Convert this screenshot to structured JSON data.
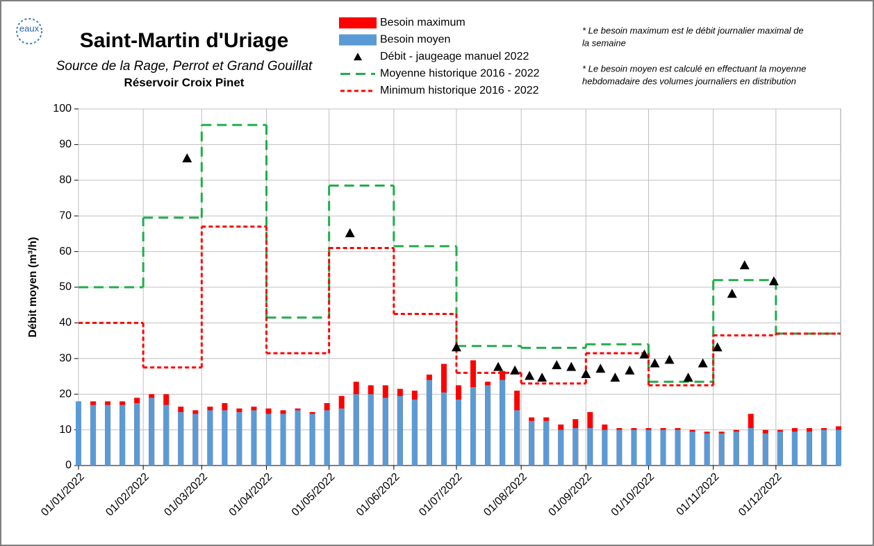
{
  "chart_data": {
    "type": "bar",
    "title": "Saint-Martin d'Uriage",
    "subtitle": "Source de la Rage, Perrot et Grand Gouillat",
    "subtitle2": "Réservoir Croix Pinet",
    "logo": "eaux",
    "ylabel": "Débit moyen (m³/h)",
    "notes": [
      "* Le besoin maximum est le débit journalier maximal de",
      "la semaine",
      "* Le besoin moyen est calculé en effectuant la moyenne",
      "hebdomadaire des volumes journaliers en distribution"
    ],
    "xlim": [
      "2022-01-01",
      "2023-01-01"
    ],
    "xticks": [
      {
        "value": "2022-01-01",
        "label": "01/01/2022"
      },
      {
        "value": "2022-02-01",
        "label": "01/02/2022"
      },
      {
        "value": "2022-03-01",
        "label": "01/03/2022"
      },
      {
        "value": "2022-04-01",
        "label": "01/04/2022"
      },
      {
        "value": "2022-05-01",
        "label": "01/05/2022"
      },
      {
        "value": "2022-06-01",
        "label": "01/06/2022"
      },
      {
        "value": "2022-07-01",
        "label": "01/07/2022"
      },
      {
        "value": "2022-08-01",
        "label": "01/08/2022"
      },
      {
        "value": "2022-09-01",
        "label": "01/09/2022"
      },
      {
        "value": "2022-10-01",
        "label": "01/10/2022"
      },
      {
        "value": "2022-11-01",
        "label": "01/11/2022"
      },
      {
        "value": "2022-12-01",
        "label": "01/12/2022"
      }
    ],
    "ylim": [
      0,
      100
    ],
    "yticks": [
      0,
      10,
      20,
      30,
      40,
      50,
      60,
      70,
      80,
      90,
      100
    ],
    "grid": true,
    "x": [
      "2022-01-01",
      "2022-01-08",
      "2022-01-15",
      "2022-01-22",
      "2022-01-29",
      "2022-02-05",
      "2022-02-12",
      "2022-02-19",
      "2022-02-26",
      "2022-03-05",
      "2022-03-12",
      "2022-03-19",
      "2022-03-26",
      "2022-04-02",
      "2022-04-09",
      "2022-04-16",
      "2022-04-23",
      "2022-04-30",
      "2022-05-07",
      "2022-05-14",
      "2022-05-21",
      "2022-05-28",
      "2022-06-04",
      "2022-06-11",
      "2022-06-18",
      "2022-06-25",
      "2022-07-02",
      "2022-07-09",
      "2022-07-16",
      "2022-07-23",
      "2022-07-30",
      "2022-08-06",
      "2022-08-13",
      "2022-08-20",
      "2022-08-27",
      "2022-09-03",
      "2022-09-10",
      "2022-09-17",
      "2022-09-24",
      "2022-10-01",
      "2022-10-08",
      "2022-10-15",
      "2022-10-22",
      "2022-10-29",
      "2022-11-05",
      "2022-11-12",
      "2022-11-19",
      "2022-11-26",
      "2022-12-03",
      "2022-12-10",
      "2022-12-17",
      "2022-12-24",
      "2022-12-31"
    ],
    "series": [
      {
        "name": "Besoin maximum",
        "color": "#ff0000",
        "kind": "bar",
        "values": [
          18,
          18,
          18,
          18,
          19,
          20,
          20,
          16.5,
          15.5,
          16.5,
          17.5,
          16,
          16.5,
          16,
          15.5,
          16,
          15,
          17.5,
          19.5,
          23.5,
          22.5,
          22.5,
          21.5,
          21,
          25.5,
          28.5,
          22.5,
          29.5,
          23.5,
          26.5,
          21,
          13.5,
          13.5,
          11.5,
          13,
          15,
          11.5,
          10.5,
          10.5,
          10.5,
          10.5,
          10.5,
          10,
          9.5,
          9.5,
          10,
          14.5,
          10,
          10,
          10.5,
          10.5,
          10.5,
          11
        ]
      },
      {
        "name": "Besoin moyen",
        "color": "#5b9bd5",
        "kind": "bar",
        "values": [
          18,
          17,
          17,
          17,
          17.5,
          19,
          17,
          15,
          14.5,
          15.5,
          15.5,
          15,
          15.5,
          14.5,
          14.5,
          15.5,
          14.5,
          15.5,
          16,
          20,
          20,
          19,
          19.5,
          18.5,
          24,
          20.5,
          18.5,
          22,
          22.5,
          24,
          15.5,
          12.5,
          12.5,
          10,
          10.5,
          10.5,
          10,
          10,
          10,
          10,
          10,
          10,
          9.5,
          9,
          9,
          9.5,
          10.5,
          9,
          9.5,
          9.5,
          9.5,
          10,
          10
        ]
      },
      {
        "name": "Débit - jaugeage manuel 2022",
        "color": "#000000",
        "kind": "scatter",
        "x": [
          "2022-02-22",
          "2022-05-11",
          "2022-07-01",
          "2022-07-21",
          "2022-07-29",
          "2022-08-05",
          "2022-08-11",
          "2022-08-18",
          "2022-08-25",
          "2022-09-01",
          "2022-09-08",
          "2022-09-15",
          "2022-09-22",
          "2022-09-29",
          "2022-10-04",
          "2022-10-11",
          "2022-10-20",
          "2022-10-27",
          "2022-11-03",
          "2022-11-10",
          "2022-11-16",
          "2022-11-30"
        ],
        "values": [
          86,
          65,
          33,
          27.5,
          26.5,
          25,
          24.5,
          28,
          27.5,
          25.5,
          27,
          24.5,
          26.5,
          31,
          28.5,
          29.5,
          24.5,
          28.5,
          33,
          48,
          56,
          51.5
        ]
      },
      {
        "name": "Moyenne historique 2016 - 2022",
        "color": "#1fae4b",
        "kind": "step",
        "x": [
          "2022-01-01",
          "2022-02-01",
          "2022-03-01",
          "2022-04-01",
          "2022-05-01",
          "2022-06-01",
          "2022-07-01",
          "2022-08-01",
          "2022-09-01",
          "2022-10-01",
          "2022-11-01",
          "2022-12-01"
        ],
        "values": [
          50,
          69.5,
          95.5,
          41.5,
          78.5,
          61.5,
          33.5,
          33,
          34,
          23.5,
          52,
          37
        ]
      },
      {
        "name": "Minimum historique 2016 - 2022",
        "color": "#ff0000",
        "kind": "step",
        "x": [
          "2022-01-01",
          "2022-02-01",
          "2022-03-01",
          "2022-04-01",
          "2022-05-01",
          "2022-06-01",
          "2022-07-01",
          "2022-08-01",
          "2022-09-01",
          "2022-10-01",
          "2022-11-01",
          "2022-12-01"
        ],
        "values": [
          40,
          27.5,
          67,
          31.5,
          61,
          42.5,
          26,
          23,
          31.5,
          22.5,
          36.5,
          37
        ]
      }
    ]
  }
}
